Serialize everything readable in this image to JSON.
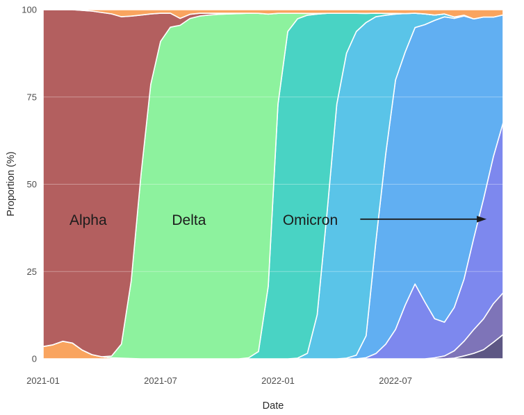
{
  "style": {
    "background": "#ffffff",
    "grid_color": "#e4e4e4",
    "grid_overlay_color": "rgba(255,255,255,0.35)",
    "tick_color": "#4d4d4d",
    "annotation_color": "#1c1c1c",
    "band_outline": "#ffffff"
  },
  "chart_data": {
    "type": "area",
    "stacked": true,
    "normalized_to": 100,
    "title": "",
    "xlabel": "Date",
    "ylabel": "Proportion (%)",
    "x_unit": "months since 2021-01 (0.5-month grid)",
    "xlim": [
      0,
      23.5
    ],
    "ylim": [
      0,
      100
    ],
    "y_ticks": [
      0,
      25,
      50,
      75,
      100
    ],
    "x_ticks": [
      {
        "t": 0,
        "label": "2021-01"
      },
      {
        "t": 6,
        "label": "2021-07"
      },
      {
        "t": 12,
        "label": "2022-01"
      },
      {
        "t": 18,
        "label": "2022-07"
      }
    ],
    "x": [
      0,
      0.5,
      1,
      1.5,
      2,
      2.5,
      3,
      3.5,
      4,
      4.5,
      5,
      5.5,
      6,
      6.5,
      7,
      7.5,
      8,
      8.5,
      9,
      9.5,
      10,
      10.5,
      11,
      11.5,
      12,
      12.5,
      13,
      13.5,
      14,
      14.5,
      15,
      15.5,
      16,
      16.5,
      17,
      17.5,
      18,
      18.5,
      19,
      19.5,
      20,
      20.5,
      21,
      21.5,
      22,
      22.5,
      23,
      23.5
    ],
    "series_note": "Stacked bottom-to-top in listed order; values are percent, begin at x index 'start', zero elsewhere; columns renormalized to 100.",
    "series": [
      {
        "name": "other_early_orange",
        "color": "#f9a45f",
        "start": 0,
        "values": [
          3.5,
          4,
          5,
          4.5,
          2.5,
          1.2,
          0.6,
          0.3,
          0.2,
          0.1
        ]
      },
      {
        "name": "newest_dark_purple",
        "color": "#5d5784",
        "start": 42,
        "values": [
          0.2,
          0.8,
          1.5,
          2.5,
          4.5,
          7
        ]
      },
      {
        "name": "late_muted_purple",
        "color": "#7e74b8",
        "start": 40,
        "values": [
          0.3,
          0.8,
          2,
          4,
          6.5,
          8.5,
          10.5,
          12
        ]
      },
      {
        "name": "late_periwinkle",
        "color": "#7d88ee",
        "start": 33,
        "values": [
          0.3,
          1.5,
          4,
          8,
          14,
          21,
          16,
          11,
          9.5,
          12,
          17,
          25,
          33,
          40,
          49
        ]
      },
      {
        "name": "omicron_sky_blue",
        "color": "#61aff2",
        "start": 31,
        "values": [
          0.2,
          1,
          6,
          32,
          52,
          68,
          66,
          72,
          78,
          84,
          86,
          80,
          72,
          60,
          50,
          38,
          31
        ]
      },
      {
        "name": "omicron_cyan",
        "color": "#5ac4e8",
        "start": 26,
        "values": [
          0.2,
          1.5,
          12,
          40,
          70,
          84,
          89,
          86,
          64,
          38,
          18,
          10,
          4,
          3,
          1.5,
          0.8,
          0.4,
          0.2
        ]
      },
      {
        "name": "omicron_teal",
        "color": "#49d3c4",
        "start": 21,
        "values": [
          0.3,
          2,
          20,
          70,
          90,
          94,
          92,
          82,
          55,
          25,
          11,
          5,
          2.5,
          1,
          0.5,
          0.2
        ]
      },
      {
        "name": "delta_green",
        "color": "#8df29e",
        "start": 7,
        "values": [
          0.5,
          4,
          22,
          52,
          78,
          90,
          95,
          96.5,
          97,
          97.5,
          98,
          98,
          98,
          98,
          96.5,
          94,
          75,
          25,
          5,
          1.5,
          0.5,
          0.2
        ]
      },
      {
        "name": "alpha_red",
        "color": "#b35f5f",
        "start": 0,
        "values": [
          96,
          95.5,
          94.5,
          95,
          97,
          98.3,
          98.5,
          98,
          93,
          75,
          45,
          20,
          8,
          4,
          2,
          1.2,
          0.8,
          0.5,
          0.3,
          0.2,
          0.1
        ]
      },
      {
        "name": "other_top_orange",
        "color": "#f9a45f",
        "start": 0,
        "values": [
          0,
          0,
          0,
          0,
          0.2,
          0.4,
          0.8,
          1.2,
          2,
          1.8,
          1.5,
          1.2,
          1,
          1,
          2.5,
          1.3,
          1,
          1,
          1,
          1,
          1,
          1,
          1,
          1.2,
          1,
          1,
          1,
          1,
          1,
          1,
          1,
          1,
          1,
          1,
          1,
          1,
          1,
          1,
          1,
          1.2,
          1.5,
          1.2,
          2,
          1.5,
          2.5,
          2,
          2,
          1.5
        ]
      }
    ],
    "annotations": [
      {
        "id": "alpha-label",
        "text": "Alpha",
        "t": 2.3,
        "y_pct": 39.5,
        "label_for": "alpha_red"
      },
      {
        "id": "delta-label",
        "text": "Delta",
        "t": 7.45,
        "y_pct": 39.5,
        "label_for": "delta_green"
      },
      {
        "id": "omicron-label",
        "text": "Omicron",
        "t": 13.65,
        "y_pct": 39.5,
        "label_for": "omicron_teal"
      }
    ],
    "arrow": {
      "from_t": 16.2,
      "to_t": 22.65,
      "y_pct": 40
    }
  }
}
